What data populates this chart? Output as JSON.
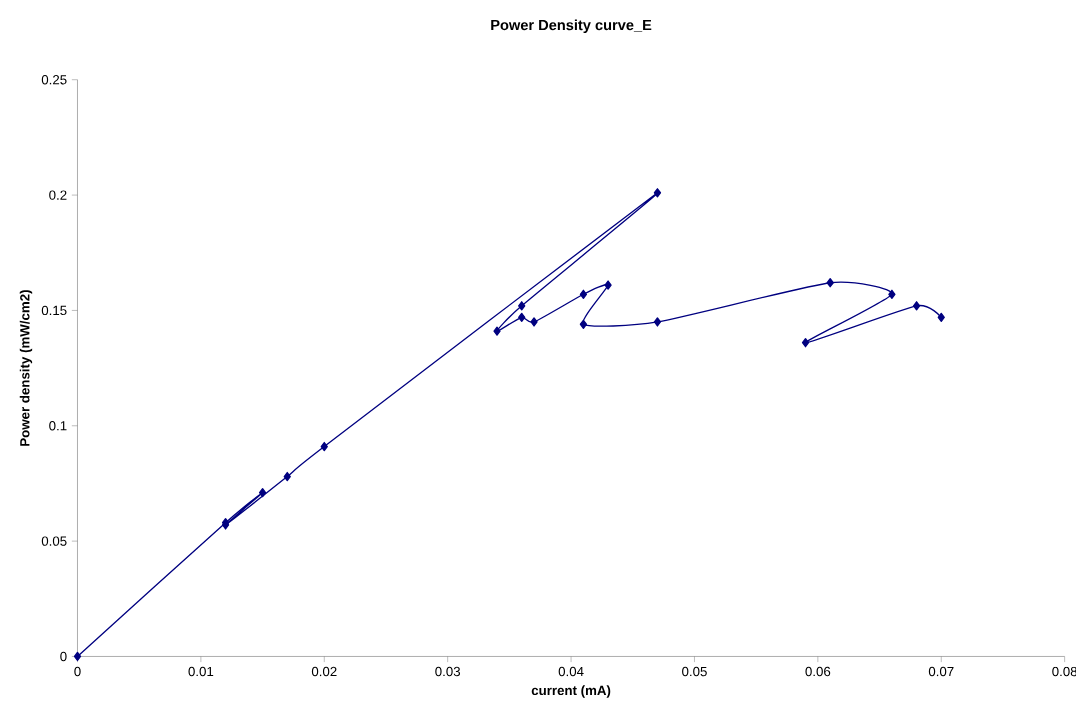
{
  "chart_data": {
    "type": "line",
    "title": "Power Density curve_E",
    "xlabel": "current (mA)",
    "ylabel": "Power density (mW/cm2)",
    "x": [
      0,
      0.012,
      0.015,
      0.012,
      0.017,
      0.02,
      0.047,
      0.036,
      0.034,
      0.036,
      0.037,
      0.041,
      0.043,
      0.041,
      0.047,
      0.061,
      0.066,
      0.059,
      0.068,
      0.07
    ],
    "values": [
      0,
      0.058,
      0.071,
      0.057,
      0.078,
      0.091,
      0.201,
      0.152,
      0.141,
      0.147,
      0.145,
      0.157,
      0.161,
      0.144,
      0.145,
      0.162,
      0.157,
      0.136,
      0.152,
      0.147
    ],
    "color": "#000080",
    "marker": "diamond",
    "line_style": "solid",
    "grid": false,
    "xlim": [
      0,
      0.08
    ],
    "xticks": [
      0,
      0.01,
      0.02,
      0.03,
      0.04,
      0.05,
      0.06,
      0.07,
      0.08
    ],
    "ylim": [
      0,
      0.25
    ],
    "yticks": [
      0,
      0.05,
      0.1,
      0.15,
      0.2,
      0.25
    ]
  }
}
